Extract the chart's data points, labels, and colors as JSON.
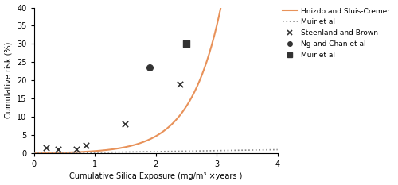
{
  "title": "",
  "xlabel": "Cumulative Silica Exposure (mg/m³ ×years )",
  "ylabel": "Cumulative risk (%)",
  "xlim": [
    0,
    4
  ],
  "ylim": [
    0,
    40
  ],
  "yticks": [
    0,
    5,
    10,
    15,
    20,
    25,
    30,
    35,
    40
  ],
  "xticks": [
    0,
    1,
    2,
    3,
    4
  ],
  "hnizdo_color": "#E8925A",
  "muir_curve_color": "#888888",
  "scatter_color": "#333333",
  "steenland_x": [
    0.2,
    0.4,
    0.7,
    0.85,
    1.5,
    2.4
  ],
  "steenland_y": [
    1.4,
    1.0,
    1.1,
    2.2,
    8.0,
    19.0
  ],
  "ng_x": [
    1.9
  ],
  "ng_y": [
    23.5
  ],
  "muir_scatter_x": [
    2.5
  ],
  "muir_scatter_y": [
    30.0
  ],
  "hnizdo_A": 0.04,
  "hnizdo_k": 2.55,
  "muir_A": 0.18,
  "muir_n": 1.2,
  "legend_labels": [
    "Hnizdo and Sluis-Cremer",
    "Muir et al",
    "Steenland and Brown",
    "Ng and Chan et al",
    "Muir et al"
  ],
  "background_color": "#ffffff",
  "figsize": [
    5.0,
    2.33
  ],
  "dpi": 100
}
